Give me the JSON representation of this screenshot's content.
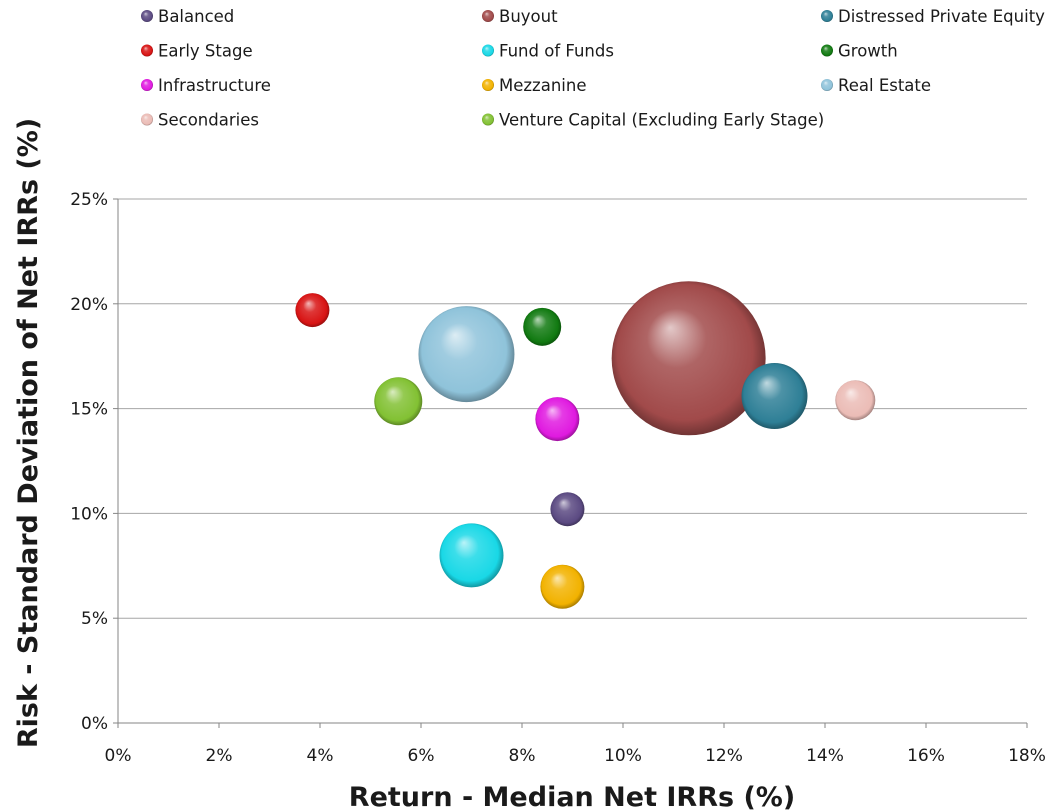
{
  "chart_data": {
    "type": "bubble",
    "xlabel": "Return - Median Net IRRs (%)",
    "ylabel": "Risk - Standard Deviation of Net IRRs (%)",
    "xlim": [
      0,
      18
    ],
    "ylim": [
      0,
      25
    ],
    "x_ticks": [
      "0%",
      "2%",
      "4%",
      "6%",
      "8%",
      "10%",
      "12%",
      "14%",
      "16%",
      "18%"
    ],
    "y_ticks": [
      "0%",
      "5%",
      "10%",
      "15%",
      "20%",
      "25%"
    ],
    "grid": "horizontal",
    "legend_position": "top",
    "series": [
      {
        "name": "Balanced",
        "x": 8.9,
        "y": 10.2,
        "size": 17,
        "color": "#5b4a82"
      },
      {
        "name": "Buyout",
        "x": 11.3,
        "y": 17.4,
        "size": 77,
        "color": "#a14a4a"
      },
      {
        "name": "Distressed Private Equity",
        "x": 13.0,
        "y": 15.6,
        "size": 33,
        "color": "#2e7f96"
      },
      {
        "name": "Early Stage",
        "x": 3.85,
        "y": 19.7,
        "size": 17,
        "color": "#d81414"
      },
      {
        "name": "Fund of Funds",
        "x": 7.0,
        "y": 8.0,
        "size": 32,
        "color": "#19d8e6"
      },
      {
        "name": "Growth",
        "x": 8.4,
        "y": 18.9,
        "size": 19,
        "color": "#117a11"
      },
      {
        "name": "Infrastructure",
        "x": 8.7,
        "y": 14.5,
        "size": 22,
        "color": "#e01ae0"
      },
      {
        "name": "Mezzanine",
        "x": 8.8,
        "y": 6.5,
        "size": 22,
        "color": "#f2b200"
      },
      {
        "name": "Real Estate",
        "x": 6.9,
        "y": 17.6,
        "size": 48,
        "color": "#8fc3da"
      },
      {
        "name": "Secondaries",
        "x": 14.6,
        "y": 15.4,
        "size": 20,
        "color": "#ebbcb6"
      },
      {
        "name": "Venture Capital (Excluding Early Stage)",
        "x": 5.55,
        "y": 15.35,
        "size": 24,
        "color": "#82c133"
      }
    ]
  }
}
